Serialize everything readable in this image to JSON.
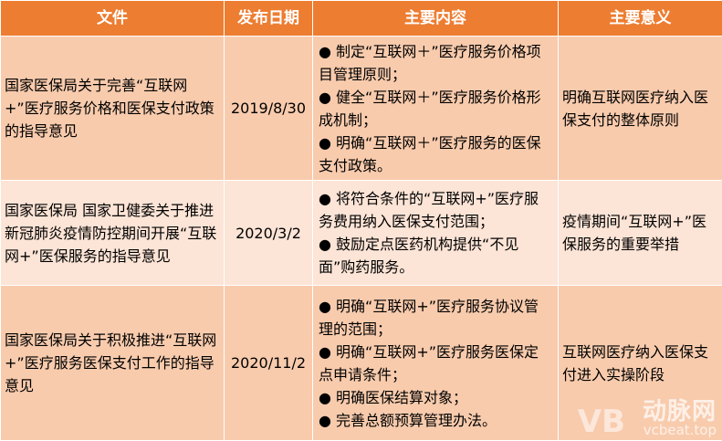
{
  "header": [
    "文件",
    "发布日期",
    "主要内容",
    "主要意义"
  ],
  "rows": [
    {
      "document": "国家医保局关于完善“互联网+”医疗服务价格和医保支付政策的指导意见",
      "date": "2019/8/30",
      "content": [
        "● 制定“互联网＋”医疗服务价格项目管理原则；",
        "● 健全“互联网＋”医疗服务价格形成机制；",
        "● 明确“互联网＋”医疗服务的医保支付政策。"
      ],
      "significance": "明确互联网医疗纳入医保支付的整体原则"
    },
    {
      "document": "国家医保局 国家卫健委关于推进新冠肺炎疫情防控期间开展“互联网+”医保服务的指导意见",
      "date": "2020/3/2",
      "content": [
        "● 将符合条件的“互联网+”医疗服务费用纳入医保支付范围；",
        "● 鼓励定点医药机构提供“不见面”购药服务。"
      ],
      "significance": "疫情期间“互联网+”医保服务的重要举措"
    },
    {
      "document": "国家医保局关于积极推进“互联网+”医疗服务医保支付工作的指导意见",
      "date": "2020/11/2",
      "content": [
        "● 明确“互联网+”医疗服务协议管理的范围；",
        "● 明确“互联网+”医疗服务医保定点申请条件；",
        "● 明确医保结算对象；",
        "● 完善总额预算管理办法。"
      ],
      "significance": "互联网医疗纳入医保支付进入实操阶段"
    }
  ],
  "watermark": {
    "mark": "VB",
    "name": "动脉网",
    "url": "vcbeat.top"
  },
  "colors": {
    "header": "#ED7D31",
    "row_dark": "#F8CBAD",
    "row_light": "#FCE4D6"
  }
}
